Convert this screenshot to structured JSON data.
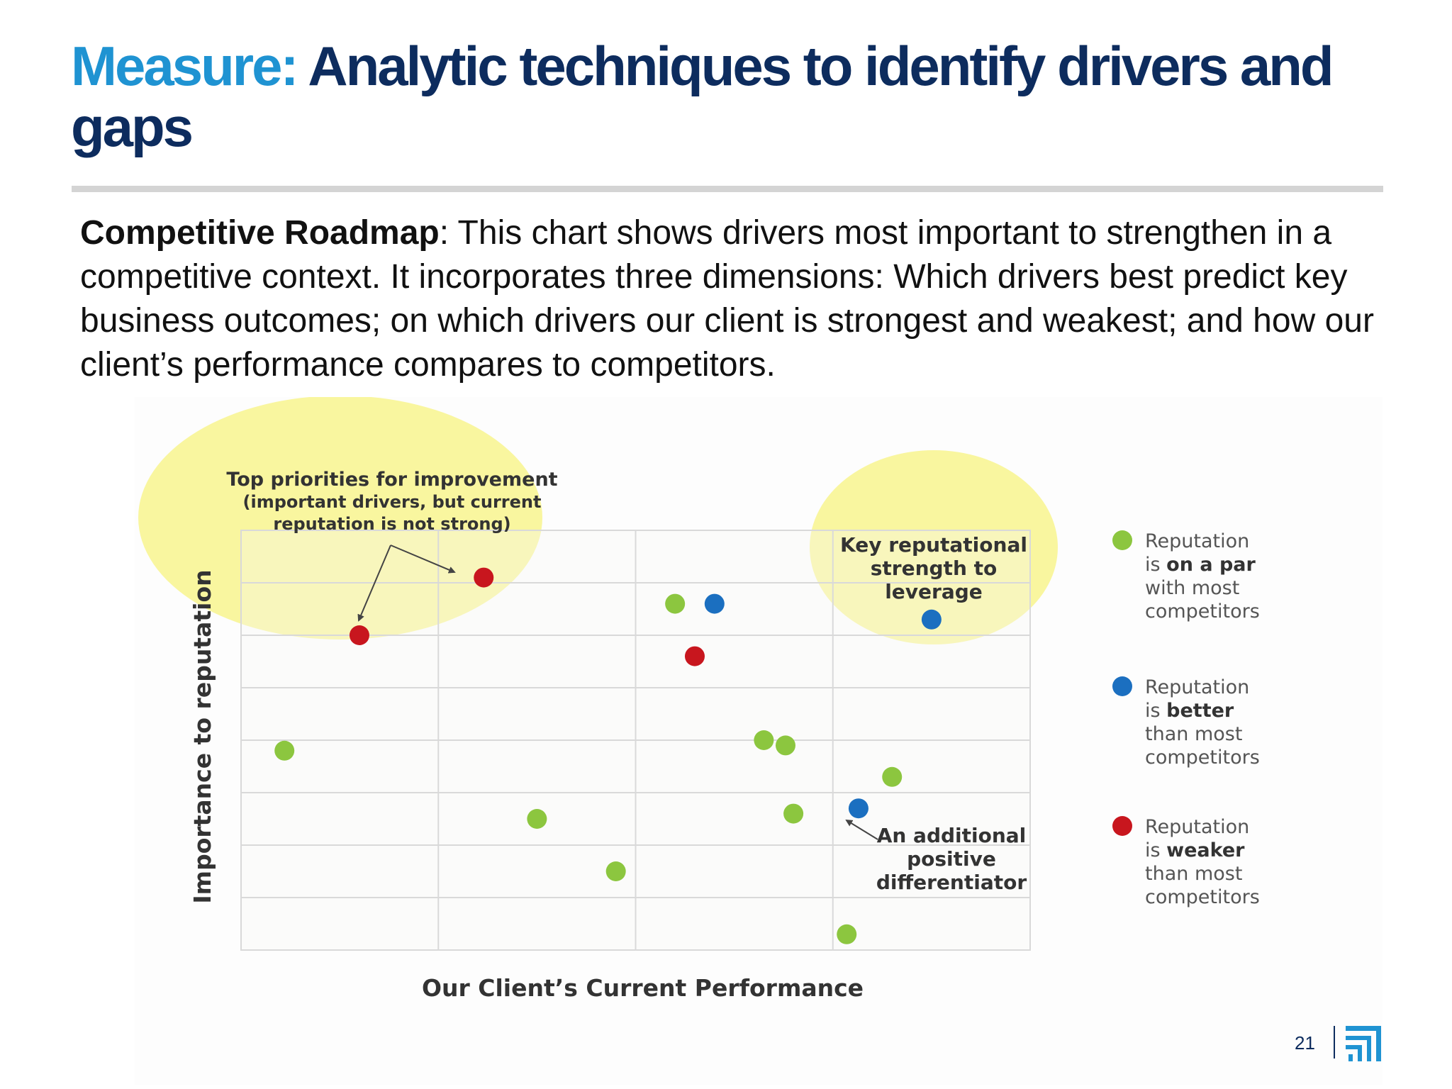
{
  "title": {
    "accent": "Measure:",
    "rest": "Analytic techniques to identify drivers and gaps"
  },
  "description": {
    "lead": "Competitive Roadmap",
    "body": ": This chart shows drivers most important to strengthen in a competitive context. It incorporates three dimensions: Which drivers best predict key business outcomes; on which drivers our client is strongest and weakest; and how our client’s performance compares to competitors."
  },
  "page_number": "21",
  "colors": {
    "title_accent": "#1f93d2",
    "title_main": "#0d2c5e",
    "par": "#8cc63f",
    "better": "#1b6fc0",
    "weaker": "#c8161e",
    "highlight": "#f6f37a"
  },
  "chart_data": {
    "type": "scatter",
    "xlabel": "Our Client’s Current Performance",
    "ylabel": "Importance to reputation",
    "xlim": [
      0,
      4
    ],
    "ylim": [
      0,
      8
    ],
    "grid": true,
    "legend_position": "right",
    "legend": [
      {
        "key": "par",
        "lines": [
          [
            "Reputation",
            ""
          ],
          [
            "is ",
            "on a par"
          ],
          [
            "with most",
            ""
          ],
          [
            "competitors",
            ""
          ]
        ]
      },
      {
        "key": "better",
        "lines": [
          [
            "Reputation",
            ""
          ],
          [
            "is ",
            "better"
          ],
          [
            "than most",
            ""
          ],
          [
            "competitors",
            ""
          ]
        ]
      },
      {
        "key": "weaker",
        "lines": [
          [
            "Reputation",
            ""
          ],
          [
            "is ",
            "weaker"
          ],
          [
            "than most",
            ""
          ],
          [
            "competitors",
            ""
          ]
        ]
      }
    ],
    "series": [
      {
        "key": "par",
        "points": [
          [
            0.22,
            3.8
          ],
          [
            1.5,
            2.5
          ],
          [
            1.9,
            1.5
          ],
          [
            2.2,
            6.6
          ],
          [
            2.65,
            4.0
          ],
          [
            2.76,
            3.9
          ],
          [
            2.8,
            2.6
          ],
          [
            3.07,
            0.3
          ],
          [
            3.3,
            3.3
          ]
        ]
      },
      {
        "key": "better",
        "points": [
          [
            2.4,
            6.6
          ],
          [
            3.13,
            2.7
          ],
          [
            3.5,
            6.3
          ]
        ]
      },
      {
        "key": "weaker",
        "points": [
          [
            0.6,
            6.0
          ],
          [
            1.23,
            7.1
          ],
          [
            2.3,
            5.6
          ]
        ]
      }
    ],
    "annotations": [
      {
        "name": "top-priorities",
        "lines": [
          "Top priorities for improvement",
          "(important drivers, but current",
          "reputation is not strong)"
        ]
      },
      {
        "name": "key-strength",
        "lines": [
          "Key reputational",
          "strength to",
          "leverage"
        ]
      },
      {
        "name": "additional-differentiator",
        "lines": [
          "An additional",
          "positive",
          "differentiator"
        ]
      }
    ]
  }
}
